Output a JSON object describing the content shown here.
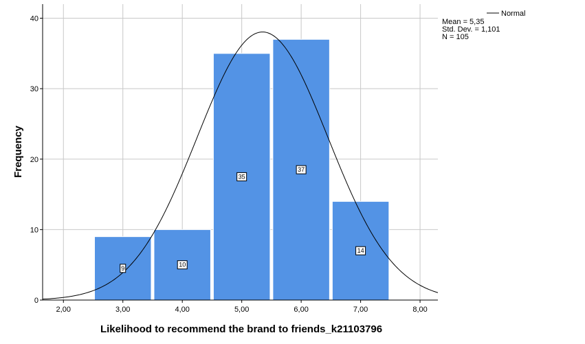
{
  "chart_data": {
    "type": "bar",
    "subtype": "histogram",
    "xlabel": "Likelihood to recommend the brand to friends_k21103796",
    "ylabel": "Frequency",
    "xlim": [
      1.65,
      8.3
    ],
    "ylim": [
      0,
      42
    ],
    "x_ticks": [
      2,
      3,
      4,
      5,
      6,
      7,
      8
    ],
    "x_tick_labels": [
      "2,00",
      "3,00",
      "4,00",
      "5,00",
      "6,00",
      "7,00",
      "8,00"
    ],
    "y_ticks": [
      0,
      10,
      20,
      30,
      40
    ],
    "y_tick_labels": [
      "0",
      "10",
      "20",
      "30",
      "40"
    ],
    "bins": [
      {
        "center": 3,
        "value": 9,
        "label": "9"
      },
      {
        "center": 4,
        "value": 10,
        "label": "10"
      },
      {
        "center": 5,
        "value": 35,
        "label": "35"
      },
      {
        "center": 6,
        "value": 37,
        "label": "37"
      },
      {
        "center": 7,
        "value": 14,
        "label": "14"
      }
    ],
    "bin_width": 1,
    "bar_color": "#5393e5",
    "grid": true,
    "normal_curve": {
      "name": "Normal",
      "mean": 5.35,
      "std": 1.101,
      "n": 105,
      "color": "#000000"
    },
    "legend": {
      "position": "top-right",
      "entry": "Normal",
      "stats": [
        "Mean = 5,35",
        "Std. Dev. = 1,101",
        "N = 105"
      ]
    }
  }
}
